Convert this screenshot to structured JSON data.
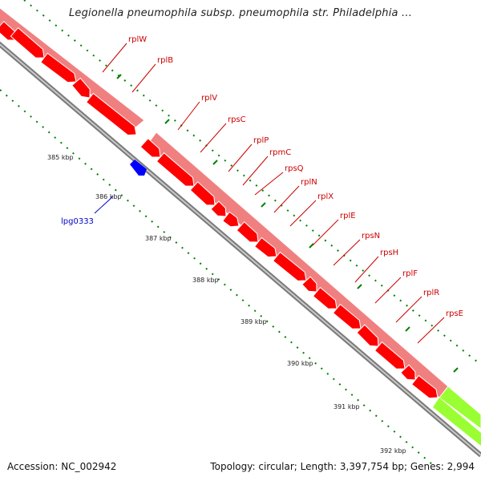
{
  "title": "Legionella pneumophila subsp. pneumophila str. Philadelphia ...",
  "accession": "Accession: NC_002942",
  "summary": "Topology: circular; Length: 3,397,754 bp; Genes: 2,994",
  "colors": {
    "outer_band": "#f08080",
    "gene_red": "#ff0000",
    "gene_blue": "#0000ff",
    "gene_green": "#99ff33",
    "backbone": "#808080",
    "tick_green": "#008000",
    "label_red": "#cc0000",
    "label_blue": "#0000cc"
  },
  "kbp_labels": [
    "385 kbp",
    "386 kbp",
    "387 kbp",
    "388 kbp",
    "389 kbp",
    "390 kbp",
    "391 kbp",
    "392 kbp"
  ],
  "genes_forward": [
    "rplW",
    "rplB",
    "rplV",
    "rpsC",
    "rplP",
    "rpmC",
    "rpsQ",
    "rplN",
    "rplX",
    "rplE",
    "rpsN",
    "rpsH",
    "rplF",
    "rplR",
    "rpsE"
  ],
  "genes_reverse": [
    "lpg0333"
  ]
}
